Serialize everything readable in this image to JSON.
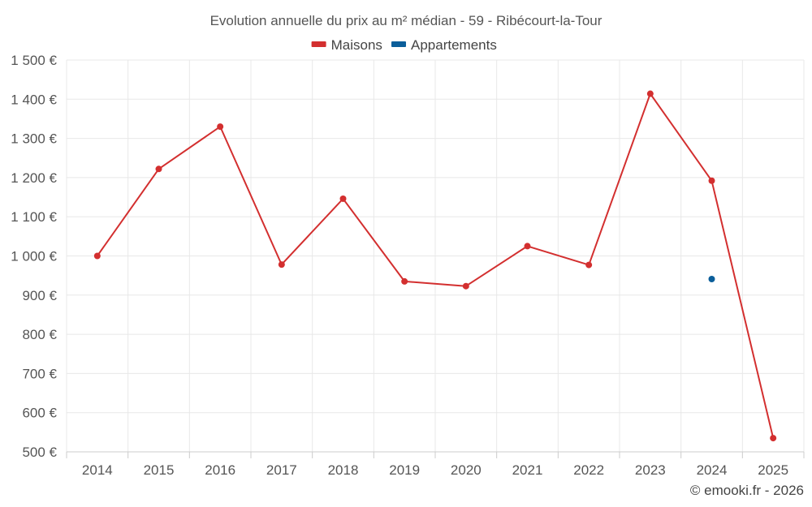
{
  "chart_data": {
    "type": "line",
    "title": "Evolution annuelle du prix au m² médian - 59 - Ribécourt-la-Tour",
    "categories": [
      "2014",
      "2015",
      "2016",
      "2017",
      "2018",
      "2019",
      "2020",
      "2021",
      "2022",
      "2023",
      "2024",
      "2025"
    ],
    "series": [
      {
        "name": "Maisons",
        "color": "#d32f2f",
        "values": [
          1000,
          1222,
          1330,
          978,
          1146,
          935,
          923,
          1025,
          977,
          1414,
          1192,
          535
        ]
      },
      {
        "name": "Appartements",
        "color": "#0b5e9a",
        "values": [
          null,
          null,
          null,
          null,
          null,
          null,
          null,
          null,
          null,
          null,
          941,
          null
        ]
      }
    ],
    "y_ticks": [
      500,
      600,
      700,
      800,
      900,
      1000,
      1100,
      1200,
      1300,
      1400,
      1500
    ],
    "y_tick_labels": [
      "500 €",
      "600 €",
      "700 €",
      "800 €",
      "900 €",
      "1 000 €",
      "1 100 €",
      "1 200 €",
      "1 300 €",
      "1 400 €",
      "1 500 €"
    ],
    "ylim": [
      500,
      1500
    ],
    "xlabel": "",
    "ylabel": "",
    "grid": true,
    "legend_position": "top-center"
  },
  "credit": "© emooki.fr - 2026"
}
